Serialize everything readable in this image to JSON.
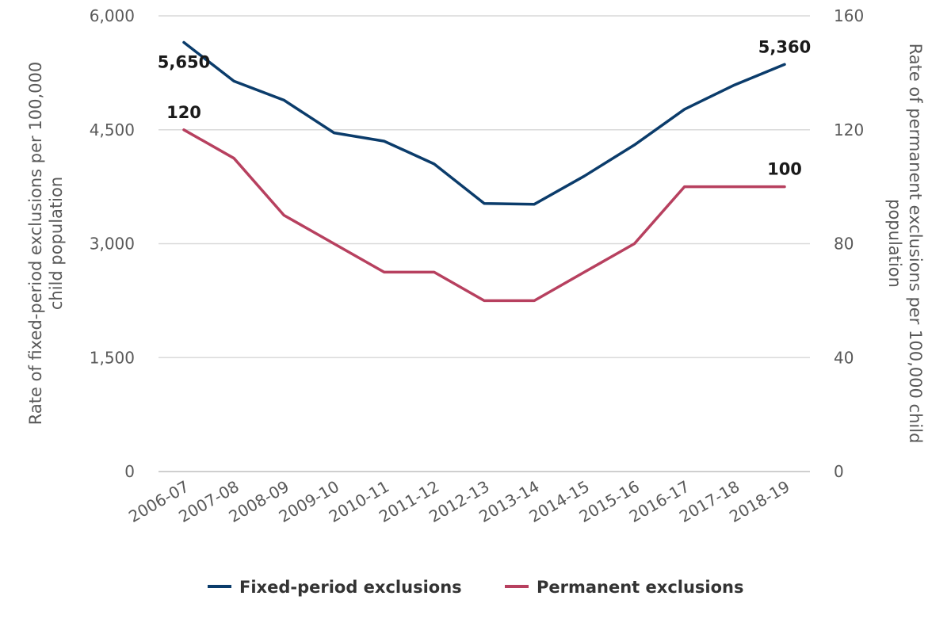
{
  "chart_data": {
    "type": "line",
    "title": "",
    "categories": [
      "2006-07",
      "2007-08",
      "2008-09",
      "2009-10",
      "2010-11",
      "2011-12",
      "2012-13",
      "2013-14",
      "2014-15",
      "2015-16",
      "2016-17",
      "2017-18",
      "2018-19"
    ],
    "y_left": {
      "label": "Rate of fixed-period exclusions per 100,000 child population",
      "range": [
        0,
        6000
      ],
      "ticks": [
        0,
        1500,
        3000,
        4500,
        6000
      ],
      "tick_labels": [
        "0",
        "1,500",
        "3,000",
        "4,500",
        "6,000"
      ]
    },
    "y_right": {
      "label": "Rate of permanent exclusions per 100,000 child population",
      "range": [
        0,
        160
      ],
      "ticks": [
        0,
        40,
        80,
        120,
        160
      ],
      "tick_labels": [
        "0",
        "40",
        "80",
        "120",
        "160"
      ]
    },
    "series": [
      {
        "name": "Fixed-period exclusions",
        "axis": "left",
        "color": "#0b3c6b",
        "values": [
          5650,
          5140,
          4890,
          4460,
          4350,
          4050,
          3530,
          3520,
          3890,
          4300,
          4770,
          5090,
          5360
        ],
        "end_labels": {
          "first": "5,650",
          "last": "5,360"
        }
      },
      {
        "name": "Permanent exclusions",
        "axis": "right",
        "color": "#b7405f",
        "values": [
          120,
          110,
          90,
          80,
          70,
          70,
          60,
          60,
          70,
          80,
          100,
          100,
          100
        ],
        "end_labels": {
          "first": "120",
          "last": "100"
        }
      }
    ],
    "grid": true,
    "legend": "bottom"
  }
}
